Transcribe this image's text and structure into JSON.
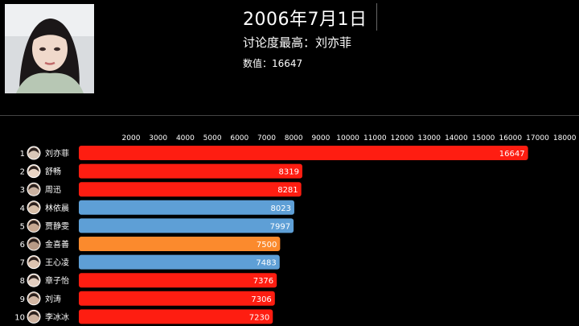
{
  "header": {
    "date": "2006年7月1日",
    "top_label": "讨论度最高：",
    "top_name": "刘亦菲",
    "value_label": "数值：",
    "value": "16647"
  },
  "colors": {
    "red": "#fe1d11",
    "blue": "#5e9fd6",
    "orange": "#fb8a2d"
  },
  "chart_data": {
    "type": "bar",
    "orientation": "horizontal",
    "x_ticks": [
      2000,
      3000,
      4000,
      5000,
      6000,
      7000,
      8000,
      9000,
      10000,
      11000,
      12000,
      13000,
      14000,
      15000,
      16000,
      17000,
      18000
    ],
    "xlim": [
      0,
      18000
    ],
    "ranks": [
      "1",
      "2",
      "3",
      "4",
      "5",
      "6",
      "7",
      "8",
      "9",
      "10"
    ],
    "categories": [
      "刘亦菲",
      "舒畅",
      "周迅",
      "林依晨",
      "贾静雯",
      "金喜善",
      "王心凌",
      "章子怡",
      "刘涛",
      "李冰冰"
    ],
    "values": [
      16647,
      8319,
      8281,
      8023,
      7997,
      7500,
      7483,
      7376,
      7306,
      7230
    ],
    "bar_colors": [
      "#fe1d11",
      "#fe1d11",
      "#fe1d11",
      "#5e9fd6",
      "#5e9fd6",
      "#fb8a2d",
      "#5e9fd6",
      "#fe1d11",
      "#fe1d11",
      "#fe1d11"
    ],
    "avatar_colors": [
      "#d9c7b8",
      "#e8d4c4",
      "#c9b1a0",
      "#d7bfa9",
      "#c7a891",
      "#b89a86",
      "#dcc3b0",
      "#e0ccbe",
      "#d2b7a4",
      "#cdb29f"
    ]
  }
}
